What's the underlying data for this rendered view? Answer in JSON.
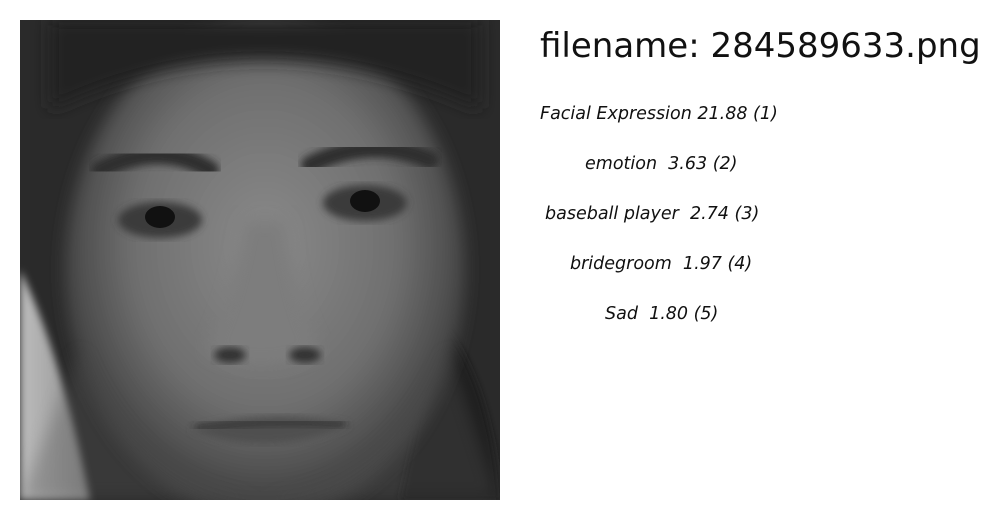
{
  "header": {
    "filename_prefix": "filename: ",
    "filename": "284589633.png"
  },
  "predictions": [
    {
      "text": "Facial Expression 21.88 (1)"
    },
    {
      "text": "emotion  3.63 (2)"
    },
    {
      "text": "baseball player  2.74 (3)"
    },
    {
      "text": "bridegroom  1.97 (4)"
    },
    {
      "text": "Sad  1.80 (5)"
    }
  ]
}
